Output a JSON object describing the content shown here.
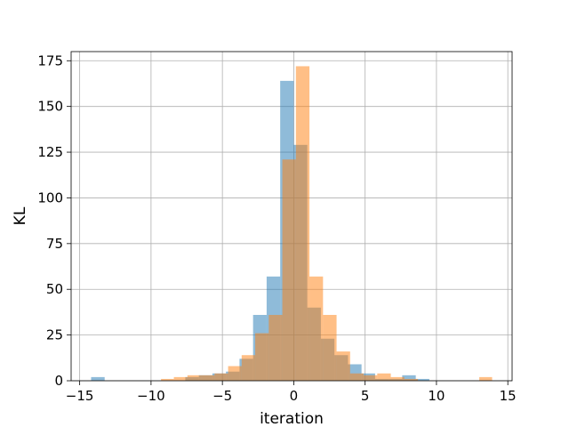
{
  "chart_data": {
    "type": "histogram",
    "title": "",
    "xlabel": "iteration",
    "ylabel": "KL",
    "xlim": [
      -15.6,
      15.3
    ],
    "ylim": [
      0,
      180
    ],
    "grid": true,
    "xticks": [
      -15,
      -10,
      -5,
      0,
      5,
      10,
      15
    ],
    "xtick_labels": [
      "−15",
      "−10",
      "−5",
      "0",
      "5",
      "10",
      "15"
    ],
    "yticks": [
      0,
      25,
      50,
      75,
      100,
      125,
      150,
      175
    ],
    "ytick_labels": [
      "0",
      "25",
      "50",
      "75",
      "100",
      "125",
      "150",
      "175"
    ],
    "series": [
      {
        "color": "#1f77b4",
        "opacity": 0.5,
        "bins": [
          [
            -14.2,
            -13.25,
            2
          ],
          [
            -7.6,
            -6.65,
            2
          ],
          [
            -6.65,
            -5.7,
            3
          ],
          [
            -5.7,
            -4.75,
            4
          ],
          [
            -4.75,
            -3.8,
            5
          ],
          [
            -3.8,
            -2.85,
            12
          ],
          [
            -2.85,
            -1.9,
            36
          ],
          [
            -1.9,
            -0.95,
            57
          ],
          [
            -0.95,
            0.0,
            164
          ],
          [
            0.0,
            0.95,
            129
          ],
          [
            0.95,
            1.9,
            40
          ],
          [
            1.9,
            2.85,
            23
          ],
          [
            2.85,
            3.8,
            14
          ],
          [
            3.8,
            4.75,
            9
          ],
          [
            4.75,
            5.7,
            4
          ],
          [
            5.7,
            6.65,
            1
          ],
          [
            6.65,
            7.6,
            1
          ],
          [
            7.6,
            8.55,
            3
          ],
          [
            8.55,
            9.5,
            1
          ]
        ]
      },
      {
        "color": "#ff7f0e",
        "opacity": 0.5,
        "bins": [
          [
            -9.3,
            -8.4,
            1
          ],
          [
            -8.4,
            -7.45,
            2
          ],
          [
            -7.45,
            -6.5,
            3
          ],
          [
            -6.5,
            -5.55,
            3
          ],
          [
            -5.55,
            -4.6,
            4
          ],
          [
            -4.6,
            -3.65,
            8
          ],
          [
            -3.65,
            -2.7,
            14
          ],
          [
            -2.7,
            -1.75,
            26
          ],
          [
            -1.75,
            -0.8,
            36
          ],
          [
            -0.8,
            0.15,
            121
          ],
          [
            0.15,
            1.1,
            172
          ],
          [
            1.1,
            2.05,
            57
          ],
          [
            2.05,
            3.0,
            36
          ],
          [
            3.0,
            3.95,
            16
          ],
          [
            3.95,
            4.9,
            4
          ],
          [
            4.9,
            5.85,
            3
          ],
          [
            5.85,
            6.8,
            4
          ],
          [
            6.8,
            7.75,
            2
          ],
          [
            7.75,
            8.7,
            1
          ],
          [
            13.0,
            13.9,
            2
          ]
        ]
      }
    ]
  }
}
